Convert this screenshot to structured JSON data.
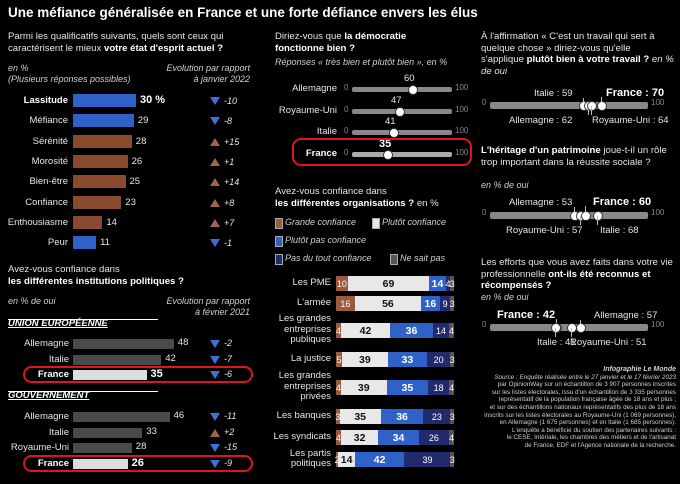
{
  "title": "Une méfiance généralisée en France et une forte défiance envers les élus",
  "q1": {
    "text_a": "Parmi les qualificatifs suivants, quels sont ceux qui caractérisent le mieux ",
    "text_b": "votre état d'esprit actuel ?",
    "unit": "en %",
    "unit2": "(Plusieurs réponses possibles)",
    "evo": "Evolution par rapport",
    "evo2": "à janvier 2022"
  },
  "q2": {
    "text_a": "Avez-vous confiance dans",
    "text_b": "les différentes institutions politiques ?",
    "unit": "en % de oui",
    "evo": "Evolution par rapport",
    "evo2": "à février 2021",
    "sec1": "UNION EUROPÉENNE",
    "sec2": "GOUVERNEMENT"
  },
  "q3": {
    "text_a": "Diriez-vous que ",
    "text_b": "la démocratie",
    "text_c": "fonctionne bien ?",
    "note": "Réponses « très bien et plutôt bien », en %",
    "min": "0",
    "max": "100"
  },
  "q4": {
    "text_a": "Avez-vous confiance dans",
    "text_b": "les différentes organisations ?",
    "text_c": " en %",
    "leg": [
      "Grande confiance",
      "Plutôt confiance",
      "Plutôt pas confiance",
      "Pas du tout confiance",
      "Ne sait pas"
    ]
  },
  "q5": {
    "text_a": "À l'affirmation « C'est un travail qui sert à quelque chose » diriez-vous qu'elle s'applique ",
    "text_b": "plutôt bien à votre travail ?",
    "text_c": " en % de oui"
  },
  "q6": {
    "text_a": "L'héritage d'un patrimoine",
    "text_b": " joue-t-il un rôle trop important dans la réussite sociale ?",
    "note": "en % de oui"
  },
  "q7": {
    "text_a": "Les efforts que vous avez faits dans votre vie professionnelle ",
    "text_b": "ont-ils été reconnus et récompensés ?",
    "note": "en % de oui"
  },
  "source": {
    "credit": "Infographie Le Monde",
    "lines": [
      "Source : Enquête réalisée entre le 27 janvier et le 17 février 2023",
      "par OpinionWay sur un échantillon de 3 907 personnes inscrites",
      "sur les listes électorales, issu d'un échantillon de 3 335 personnes",
      "représentatif de la population française âgée de 18 ans et plus ;",
      "et sur des échantillons nationaux représentatifs des plus de 18 ans",
      "inscrits sur les listes électorales au Royaume-Uni (1 069 personnes),",
      "en Allemagne (1 675 personnes) et en Italie (1 685 personnes).",
      "L'enquête a bénéficié du soutien des partenaires suivants :",
      "le CESE, Intériale, les chambres des métiers et de l'artisanat",
      "de France, EDF et l'Agence nationale de la recherche."
    ]
  },
  "chart_data": [
    {
      "type": "bar",
      "id": "etat_esprit",
      "categories": [
        "Lassitude",
        "Méfiance",
        "Sérénité",
        "Morosité",
        "Bien-être",
        "Confiance",
        "Enthousiasme",
        "Peur"
      ],
      "values": [
        30,
        29,
        28,
        26,
        25,
        23,
        14,
        11
      ],
      "labels": [
        "30 %",
        "29",
        "28",
        "26",
        "25",
        "23",
        "14",
        "11"
      ],
      "evolution": [
        "-10",
        "-8",
        "+15",
        "+1",
        "+14",
        "+8",
        "+7",
        "-1"
      ],
      "colors": [
        "#2f62c8",
        "#2f62c8",
        "#8a4a30",
        "#8a4a30",
        "#8a4a30",
        "#8a4a30",
        "#8a4a30",
        "#2f62c8"
      ]
    },
    {
      "type": "bar",
      "id": "ue",
      "categories": [
        "Allemagne",
        "Italie",
        "France"
      ],
      "values": [
        48,
        42,
        35
      ],
      "evolution": [
        "-2",
        "-7",
        "-6"
      ]
    },
    {
      "type": "bar",
      "id": "gouvernement",
      "categories": [
        "Allemagne",
        "Italie",
        "Royaume-Uni",
        "France"
      ],
      "values": [
        46,
        33,
        28,
        26
      ],
      "evolution": [
        "-11",
        "+2",
        "-15",
        "-9"
      ],
      "evolution_dir": [
        "down",
        "up",
        "down",
        "down"
      ]
    },
    {
      "type": "scatter",
      "id": "democratie",
      "categories": [
        "Allemagne",
        "Royaume-Uni",
        "Italie",
        "France"
      ],
      "values": [
        60,
        47,
        41,
        35
      ],
      "xlim": [
        0,
        100
      ]
    },
    {
      "type": "bar",
      "id": "organisations",
      "stacked": true,
      "categories": [
        "Les PME",
        "L'armée",
        "Les grandes entreprises publiques",
        "La justice",
        "Les grandes entreprises privées",
        "Les banques",
        "Les syndicats",
        "Les partis politiques"
      ],
      "series": [
        {
          "name": "Grande confiance",
          "values": [
            10,
            16,
            4,
            5,
            4,
            3,
            4,
            2
          ],
          "color": "#9a5a40"
        },
        {
          "name": "Plutôt confiance",
          "values": [
            69,
            56,
            42,
            39,
            39,
            35,
            32,
            14
          ],
          "color": "#e8e8e8"
        },
        {
          "name": "Plutôt pas confiance",
          "values": [
            14,
            16,
            36,
            33,
            35,
            36,
            34,
            42
          ],
          "color": "#2f62c8"
        },
        {
          "name": "Pas du tout confiance",
          "values": [
            4,
            9,
            14,
            20,
            18,
            23,
            26,
            39
          ],
          "color": "#222a6e"
        },
        {
          "name": "Ne sait pas",
          "values": [
            3,
            3,
            4,
            3,
            4,
            3,
            4,
            3
          ],
          "color": "#555"
        }
      ]
    },
    {
      "type": "scatter",
      "id": "travail_utile",
      "categories": [
        "Italie",
        "Allemagne",
        "France",
        "Royaume-Uni"
      ],
      "values": [
        59,
        62,
        70,
        64
      ],
      "xlim": [
        0,
        100
      ]
    },
    {
      "type": "scatter",
      "id": "heritage",
      "categories": [
        "Allemagne",
        "Royaume-Uni",
        "France",
        "Italie"
      ],
      "values": [
        53,
        57,
        60,
        68
      ],
      "xlim": [
        0,
        100
      ]
    },
    {
      "type": "scatter",
      "id": "efforts",
      "categories": [
        "France",
        "Italie",
        "Allemagne",
        "Royaume-Uni"
      ],
      "values": [
        42,
        41,
        57,
        51
      ],
      "xlim": [
        0,
        100
      ]
    }
  ]
}
